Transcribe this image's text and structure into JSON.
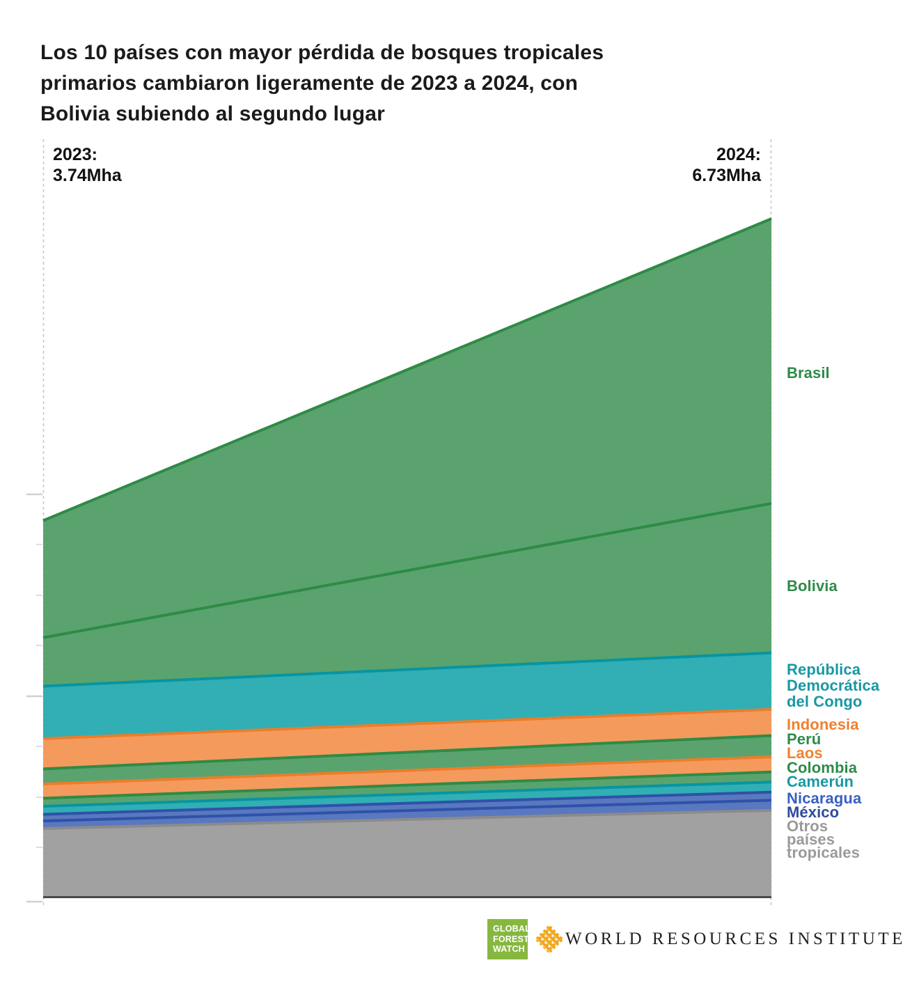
{
  "title": "Los 10 países con mayor pérdida de bosques tropicales\nprimarios cambiaron ligeramente de 2023 a 2024, con\nBolivia subiendo al segundo lugar",
  "axis": {
    "left_year": "2023:",
    "left_total": "3.74Mha",
    "right_year": "2024:",
    "right_total": "6.73Mha"
  },
  "footer": {
    "gfw_lines": [
      "GLOBAL",
      "FOREST",
      "WATCH"
    ],
    "gfw_green": "#87B73F",
    "wri_text": "WORLD RESOURCES INSTITUTE",
    "wri_gold": "#F2A71E"
  },
  "chart_data": {
    "type": "area",
    "subtype": "slope-stacked-area",
    "x": [
      "2023",
      "2024"
    ],
    "totals_mha": {
      "2023": 3.74,
      "2024": 6.73
    },
    "unit": "Mha",
    "ylim": [
      0,
      6.73
    ],
    "grid": false,
    "legend_position": "right",
    "series": [
      {
        "name": "Brasil",
        "label": "Brasil",
        "values": [
          1.16,
          2.82
        ],
        "fill": "#5AA36F",
        "stroke": "#2E8B45",
        "label_color": "#2E8B4A"
      },
      {
        "name": "Bolivia",
        "label": "Bolivia",
        "values": [
          0.48,
          1.48
        ],
        "fill": "#5AA36F",
        "stroke": "#2E8B45",
        "label_color": "#2E8B4A"
      },
      {
        "name": "República Democrática del Congo",
        "label": "República\nDemocrática\ndel Congo",
        "values": [
          0.52,
          0.56
        ],
        "fill": "#31AFB4",
        "stroke": "#0795A1",
        "label_color": "#1898A2"
      },
      {
        "name": "Indonesia",
        "label": "Indonesia",
        "values": [
          0.3,
          0.26
        ],
        "fill": "#F49A5D",
        "stroke": "#EC7D2B",
        "label_color": "#F0802F"
      },
      {
        "name": "Perú",
        "label": "Perú",
        "values": [
          0.15,
          0.21
        ],
        "fill": "#5AA36F",
        "stroke": "#2E8B45",
        "label_color": "#2E8B4A"
      },
      {
        "name": "Laos",
        "label": "Laos",
        "values": [
          0.14,
          0.15
        ],
        "fill": "#F49A5D",
        "stroke": "#EC7D2B",
        "label_color": "#F0802F"
      },
      {
        "name": "Colombia",
        "label": "Colombia",
        "values": [
          0.08,
          0.1
        ],
        "fill": "#5AA36F",
        "stroke": "#2E8B45",
        "label_color": "#2E8B4A"
      },
      {
        "name": "Camerún",
        "label": "Camerún",
        "values": [
          0.08,
          0.1
        ],
        "fill": "#31AFB4",
        "stroke": "#0795A1",
        "label_color": "#1898A2"
      },
      {
        "name": "Nicaragua",
        "label": "Nicaragua",
        "values": [
          0.065,
          0.08
        ],
        "fill": "#5978BF",
        "stroke": "#2E52A8",
        "label_color": "#3A5FC3"
      },
      {
        "name": "México",
        "label": "México",
        "values": [
          0.075,
          0.1
        ],
        "fill": "#5978BF",
        "stroke": "#2E52A8",
        "label_color": "#2D4C9C"
      },
      {
        "name": "Otros países tropicales",
        "label": "Otros\npaíses\ntropicales",
        "values": [
          0.69,
          0.87
        ],
        "fill": "#A1A1A1",
        "stroke": "#8B8B8B",
        "label_color": "#9A9A9A"
      }
    ]
  }
}
